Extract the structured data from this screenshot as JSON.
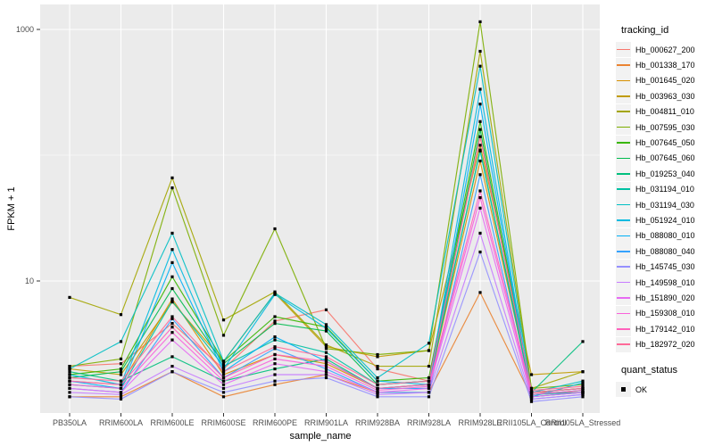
{
  "figure": {
    "background": "#FFFFFF",
    "panel_background": "#EBEBEB",
    "grid_color": "#FFFFFF",
    "axis_text_color": "#4D4D4D",
    "tick_color": "#333333",
    "legend_key_background": "#F2F2F2",
    "point_color": "#000000"
  },
  "axes": {
    "x_title": "sample_name",
    "y_title": "FPKM + 1"
  },
  "legend": {
    "color_title": "tracking_id",
    "shape_title": "quant_status",
    "shape_item_label": "OK"
  },
  "chart_data": {
    "type": "line",
    "title": "",
    "xlabel": "sample_name",
    "ylabel": "FPKM + 1",
    "y_scale": "log10",
    "y_ticks": [
      1000,
      10
    ],
    "y_minor_ticks": [
      100
    ],
    "ylim_log": [
      1.0,
      1400
    ],
    "grid": true,
    "legend_position": "right",
    "point_shape": "filled-square",
    "point_color": "#000000",
    "categories": [
      "PB350LA",
      "RRIM600LA",
      "RRIM600LE",
      "RRIM600SE",
      "RRIM600PE",
      "RRIM901LA",
      "RRIM928BA",
      "RRIM928LA",
      "RRIM928LE",
      "RRII105LA_Control",
      "RRII105LA_Stressed"
    ],
    "series": [
      {
        "name": "Hb_000627_200",
        "color": "#F8766D",
        "values": [
          2.1,
          2.2,
          4.6,
          2.0,
          4.8,
          5.9,
          2.0,
          1.6,
          140,
          1.3,
          1.3
        ]
      },
      {
        "name": "Hb_001338_170",
        "color": "#EA8331",
        "values": [
          1.2,
          1.2,
          1.9,
          1.2,
          1.5,
          1.8,
          1.3,
          1.3,
          8.1,
          1.2,
          1.3
        ]
      },
      {
        "name": "Hb_001645_020",
        "color": "#D89000",
        "values": [
          1.6,
          1.5,
          7.2,
          1.8,
          2.6,
          2.2,
          1.4,
          1.5,
          90,
          1.3,
          1.4
        ]
      },
      {
        "name": "Hb_003963_030",
        "color": "#C09B00",
        "values": [
          2.0,
          1.8,
          6.8,
          2.3,
          8.0,
          3.0,
          2.5,
          2.8,
          120,
          1.8,
          1.9
        ]
      },
      {
        "name": "Hb_004811_010",
        "color": "#A3A500",
        "values": [
          7.4,
          5.4,
          66,
          4.9,
          8.2,
          3.1,
          2.1,
          2.1,
          670,
          1.4,
          1.9
        ]
      },
      {
        "name": "Hb_007595_030",
        "color": "#7CAE00",
        "values": [
          2.1,
          2.4,
          55,
          3.7,
          26,
          2.9,
          2.6,
          2.8,
          1150,
          1.4,
          1.5
        ]
      },
      {
        "name": "Hb_007645_050",
        "color": "#39B600",
        "values": [
          1.8,
          2.0,
          10.8,
          2.3,
          5.2,
          4.3,
          1.6,
          1.7,
          185,
          1.3,
          1.4
        ]
      },
      {
        "name": "Hb_007645_060",
        "color": "#00BB4E",
        "values": [
          1.7,
          1.9,
          8.7,
          2.2,
          4.6,
          4.0,
          1.5,
          1.6,
          160,
          1.25,
          1.35
        ]
      },
      {
        "name": "Hb_019253_040",
        "color": "#00BF7D",
        "values": [
          1.9,
          1.6,
          2.5,
          1.6,
          2.0,
          2.4,
          1.4,
          1.5,
          110,
          1.3,
          3.3
        ]
      },
      {
        "name": "Hb_031194_010",
        "color": "#00C1A3",
        "values": [
          1.5,
          1.4,
          6.9,
          2.1,
          3.4,
          2.7,
          1.5,
          1.6,
          108,
          1.25,
          1.3
        ]
      },
      {
        "name": "Hb_031194_030",
        "color": "#00BFC4",
        "values": [
          2.0,
          3.3,
          24,
          2.3,
          8.0,
          4.5,
          1.7,
          3.2,
          510,
          1.3,
          1.6
        ]
      },
      {
        "name": "Hb_051924_010",
        "color": "#00BAE0",
        "values": [
          1.8,
          1.5,
          17.8,
          2.0,
          7.8,
          4.2,
          1.6,
          1.5,
          335,
          1.2,
          1.55
        ]
      },
      {
        "name": "Hb_088080_010",
        "color": "#00B0F6",
        "values": [
          1.6,
          1.4,
          14,
          1.9,
          3.6,
          2.3,
          1.4,
          1.4,
          255,
          1.2,
          1.3
        ]
      },
      {
        "name": "Hb_088080_040",
        "color": "#35A2FF",
        "values": [
          1.4,
          1.3,
          5.0,
          1.7,
          2.9,
          2.0,
          1.3,
          1.3,
          70,
          1.15,
          1.25
        ]
      },
      {
        "name": "Hb_145745_030",
        "color": "#9590FF",
        "values": [
          1.2,
          1.15,
          1.9,
          1.3,
          1.6,
          1.7,
          1.2,
          1.2,
          17,
          1.1,
          1.2
        ]
      },
      {
        "name": "Hb_149598_010",
        "color": "#C77CFF",
        "values": [
          1.3,
          1.25,
          2.1,
          1.4,
          1.8,
          1.8,
          1.25,
          1.3,
          24,
          1.15,
          1.25
        ]
      },
      {
        "name": "Hb_151890_020",
        "color": "#E76BF3",
        "values": [
          1.4,
          1.3,
          3.4,
          1.5,
          2.2,
          1.9,
          1.3,
          1.4,
          38,
          1.2,
          1.3
        ]
      },
      {
        "name": "Hb_159308_010",
        "color": "#FA62DB",
        "values": [
          1.5,
          1.4,
          3.9,
          1.6,
          2.4,
          2.1,
          1.35,
          1.45,
          46,
          1.25,
          1.35
        ]
      },
      {
        "name": "Hb_179142_010",
        "color": "#FF62BC",
        "values": [
          1.6,
          1.5,
          4.3,
          1.7,
          2.6,
          2.3,
          1.4,
          1.5,
          52,
          1.3,
          1.4
        ]
      },
      {
        "name": "Hb_182972_020",
        "color": "#FF6A98",
        "values": [
          1.7,
          1.6,
          5.2,
          1.9,
          3.0,
          2.5,
          1.5,
          1.6,
          140,
          1.35,
          1.45
        ]
      }
    ]
  }
}
